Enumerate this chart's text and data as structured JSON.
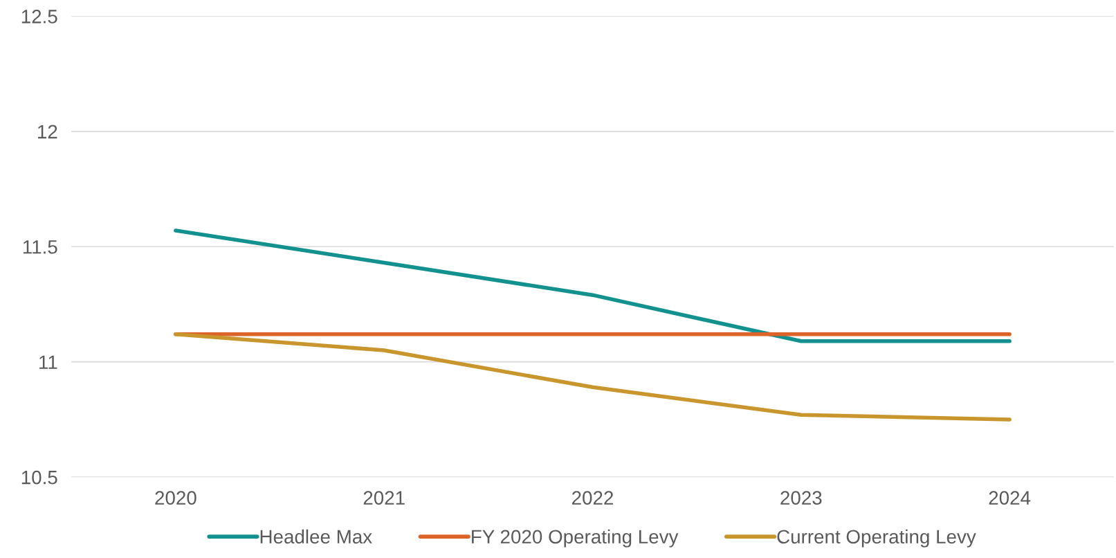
{
  "chart_data": {
    "type": "line",
    "categories": [
      "2020",
      "2021",
      "2022",
      "2023",
      "2024"
    ],
    "series": [
      {
        "name": "Headlee Max",
        "color": "#12918f",
        "values": [
          11.57,
          11.43,
          11.29,
          11.09,
          11.09
        ]
      },
      {
        "name": "FY 2020 Operating Levy",
        "color": "#dc6428",
        "values": [
          11.12,
          11.12,
          11.12,
          11.12,
          11.12
        ]
      },
      {
        "name": "Current Operating Levy",
        "color": "#c9962e",
        "values": [
          11.12,
          11.05,
          10.89,
          10.77,
          10.75
        ]
      }
    ],
    "ylim": [
      10.5,
      12.5
    ],
    "yticks": [
      10.5,
      11,
      11.5,
      12,
      12.5
    ],
    "grid": "y",
    "legend": "bottom",
    "marker": "none",
    "line_style": "solid"
  }
}
